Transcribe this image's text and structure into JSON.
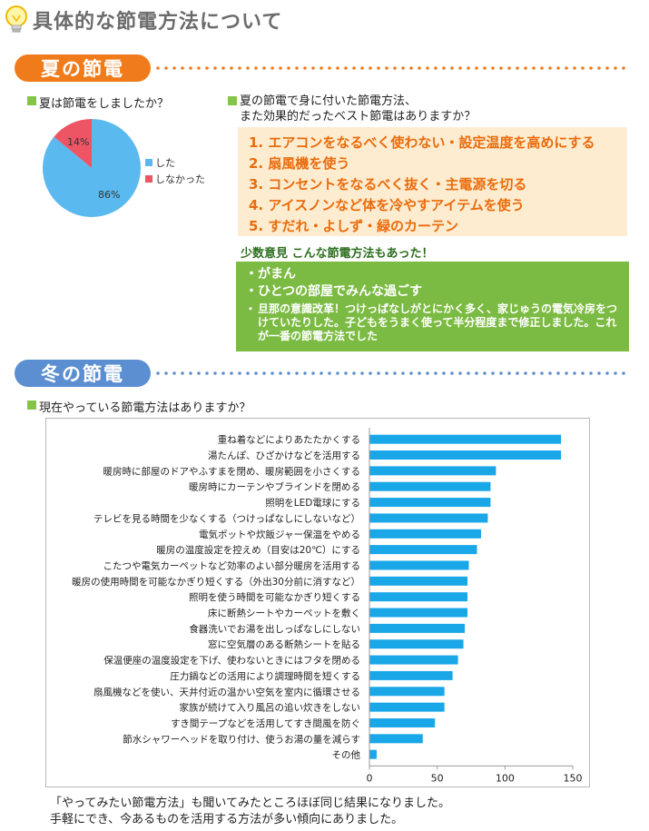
{
  "page": {
    "title": "具体的な節電方法について"
  },
  "summer": {
    "heading": "夏の節電",
    "q1": "夏は節電をしましたか？",
    "q2_line1": "夏の節電で身に付いた節電方法、",
    "q2_line2": "また効果的だったベスト節電はありますか？",
    "pie": {
      "slices": [
        {
          "label": "した",
          "value": 86,
          "display": "86%",
          "color": "#5ab9ef"
        },
        {
          "label": "しなかった",
          "value": 14,
          "display": "14%",
          "color": "#ed5565"
        }
      ]
    },
    "best": [
      "1. エアコンをなるべく使わない・設定温度を高めにする",
      "2. 扇風機を使う",
      "3. コンセントをなるべく抜く・主電源を切る",
      "4. アイスノンなど体を冷やすアイテムを使う",
      "5. すだれ・よしず・緑のカーテン"
    ],
    "minority_title": "少数意見 こんな節電方法もあった！",
    "minority_bullet": "・",
    "minority": [
      "がまん",
      "ひとつの部屋でみんな過ごす",
      "旦那の意識改革！つけっぱなしがとにかく多く、家じゅうの電気冷房をつけていたりした。子どもをうまく使って半分程度まで修正しました。これが一番の節電方法でした"
    ]
  },
  "winter": {
    "heading": "冬の節電",
    "q": "現在やっている節電方法はありますか？"
  },
  "chart_data": {
    "type": "bar",
    "orientation": "horizontal",
    "categories": [
      "重ね着などによりあたたかくする",
      "湯たんぽ、ひざかけなどを活用する",
      "暖房時に部屋のドアやふすまを閉め、暖房範囲を小さくする",
      "暖房時にカーテンやブラインドを閉める",
      "照明をLED電球にする",
      "テレビを見る時間を少なくする（つけっぱなしにしないなど）",
      "電気ポットや炊飯ジャー保温をやめる",
      "暖房の温度設定を控えめ（目安は20℃）にする",
      "こたつや電気カーペットなど効率のよい部分暖房を活用する",
      "暖房の使用時間を可能なかぎり短くする（外出30分前に消すなど）",
      "照明を使う時間を可能なかぎり短くする",
      "床に断熱シートやカーペットを敷く",
      "食器洗いでお湯を出しっぱなしにしない",
      "窓に空気層のある断熱シートを貼る",
      "保温便座の温度設定を下げ、使わないときにはフタを閉める",
      "圧力鍋などの活用により調理時間を短くする",
      "扇風機などを使い、天井付近の温かい空気を室内に循環させる",
      "家族が続けて入り風呂の追い炊きをしない",
      "すき間テープなどを活用してすき間風を防ぐ",
      "節水シャワーヘッドを取り付け、使うお湯の量を減らす",
      "その他"
    ],
    "values": [
      141,
      141,
      93,
      89,
      89,
      87,
      82,
      79,
      73,
      72,
      72,
      72,
      70,
      69,
      65,
      61,
      55,
      55,
      48,
      39,
      5
    ],
    "xlim": [
      0,
      150
    ],
    "xticks": [
      "0",
      "50",
      "100",
      "150"
    ],
    "bar_color": "#1aa7e8",
    "grid": false
  },
  "footer": {
    "line1": "「やってみたい節電方法」も聞いてみたところほぼ同じ結果になりました。",
    "line2": "手軽にでき、今あるものを活用する方法が多い傾向にありました。"
  }
}
